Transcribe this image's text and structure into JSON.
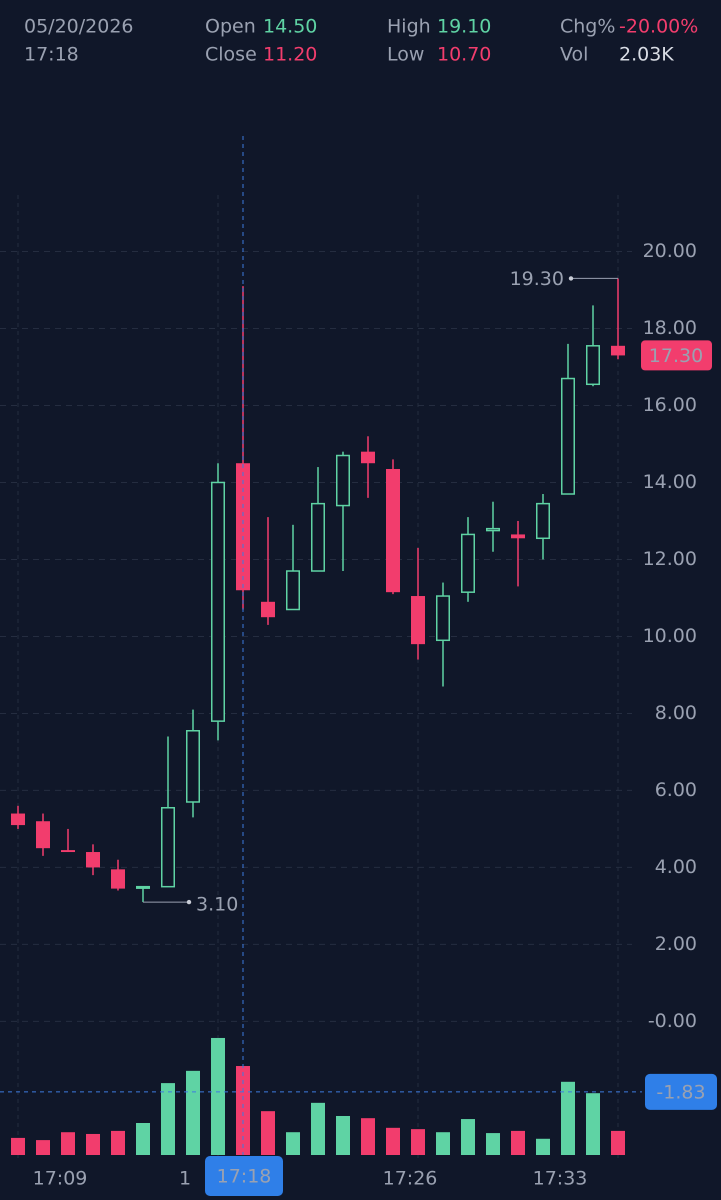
{
  "header": {
    "date": "05/20/2026",
    "time": "17:18",
    "open": {
      "label": "Open",
      "value": 14.5,
      "value_label": "14.50"
    },
    "close": {
      "label": "Close",
      "value": 11.2,
      "value_label": "11.20"
    },
    "high": {
      "label": "High",
      "value": 19.1,
      "value_label": "19.10"
    },
    "low": {
      "label": "Low",
      "value": 10.7,
      "value_label": "10.70"
    },
    "change": {
      "label": "Chg%",
      "value": -20,
      "value_label": "-20.00%"
    },
    "volume": {
      "label": "Vol",
      "value": 2030,
      "value_label": "2.03K"
    }
  },
  "chart_data": {
    "type": "candlestick",
    "categories": [
      null,
      null,
      "17:09",
      null,
      null,
      null,
      null,
      "1",
      null,
      "17:18",
      null,
      null,
      null,
      null,
      null,
      null,
      "17:26",
      null,
      null,
      null,
      null,
      null,
      "17:33",
      null,
      null
    ],
    "open": [
      5.4,
      5.2,
      4.45,
      4.4,
      3.95,
      3.5,
      3.5,
      5.7,
      7.8,
      14.5,
      10.9,
      10.7,
      11.7,
      13.4,
      14.8,
      14.35,
      11.05,
      9.9,
      11.15,
      12.75,
      12.65,
      12.55,
      13.7,
      16.55,
      17.55
    ],
    "high": [
      5.6,
      5.4,
      5.0,
      4.6,
      4.2,
      3.5,
      7.4,
      8.1,
      14.5,
      19.1,
      13.1,
      12.9,
      14.4,
      14.8,
      15.2,
      14.6,
      12.3,
      11.4,
      13.1,
      13.5,
      13.0,
      13.7,
      17.6,
      18.6,
      19.3
    ],
    "low": [
      5.0,
      4.3,
      4.4,
      3.8,
      3.4,
      3.1,
      3.5,
      5.3,
      7.3,
      10.7,
      10.3,
      10.7,
      11.7,
      11.7,
      13.6,
      11.1,
      9.4,
      8.7,
      10.9,
      12.2,
      11.3,
      12.0,
      13.7,
      16.5,
      17.2
    ],
    "close": [
      5.1,
      4.5,
      4.4,
      4.0,
      3.45,
      3.5,
      5.55,
      7.55,
      14.0,
      11.2,
      10.5,
      11.7,
      13.45,
      14.7,
      14.5,
      11.15,
      9.8,
      11.05,
      12.65,
      12.8,
      12.55,
      13.45,
      16.7,
      17.55,
      17.3
    ],
    "volume": [
      390,
      340,
      520,
      480,
      550,
      730,
      1640,
      1920,
      2670,
      2030,
      1000,
      520,
      1190,
      890,
      840,
      620,
      590,
      520,
      820,
      500,
      550,
      370,
      1670,
      1410,
      550
    ],
    "up_color": "#5fd3a4",
    "down_color": "#f23d6d",
    "ylim": [
      -3.6,
      23.0
    ],
    "yticks": [
      {
        "value": 0,
        "label": "-0.00"
      },
      {
        "value": 2,
        "label": "2.00"
      },
      {
        "value": 4,
        "label": "4.00"
      },
      {
        "value": 6,
        "label": "6.00"
      },
      {
        "value": 8,
        "label": "8.00"
      },
      {
        "value": 10,
        "label": "10.00"
      },
      {
        "value": 12,
        "label": "12.00"
      },
      {
        "value": 14,
        "label": "14.00"
      },
      {
        "value": 16,
        "label": "16.00"
      },
      {
        "value": 18,
        "label": "18.00"
      },
      {
        "value": 20,
        "label": "20.00"
      }
    ],
    "volume_ylim": [
      0,
      3000
    ],
    "grid": true,
    "max_label": {
      "value": 19.3,
      "label": "19.30"
    },
    "min_label": {
      "value": 3.1,
      "label": "3.10"
    },
    "last_price": {
      "value": 17.3,
      "label": "17.30"
    },
    "crosshair": {
      "index": 9,
      "value": -1.83,
      "label": "-1.83"
    }
  }
}
